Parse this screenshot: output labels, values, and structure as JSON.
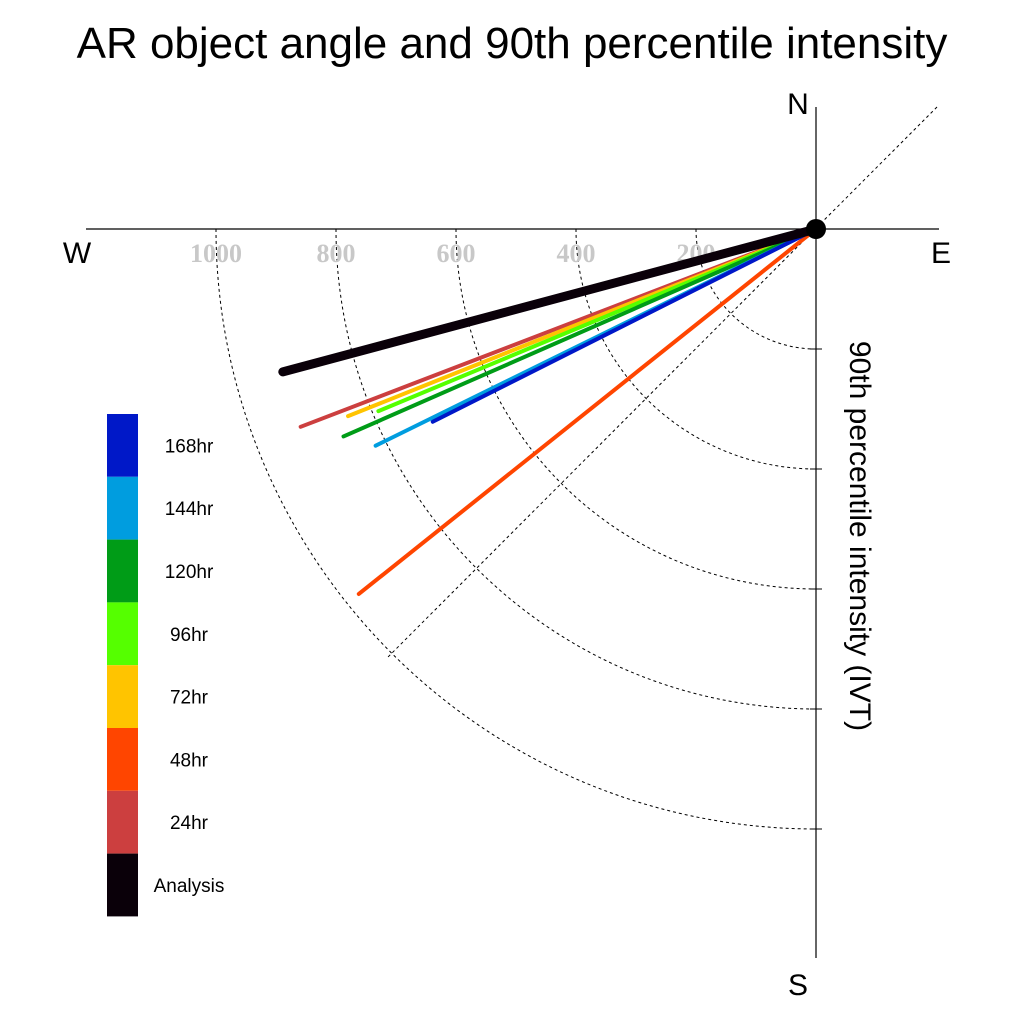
{
  "chart_data": {
    "type": "polar-vector",
    "title": "AR object angle and 90th percentile intensity",
    "radial_label": "90th percentile intensity (IVT)",
    "directions": {
      "north": "N",
      "south": "S",
      "east": "E",
      "west": "W"
    },
    "radial_ticks": [
      200,
      400,
      600,
      1000,
      800
    ],
    "radial_tick_labels": [
      "200",
      "400",
      "600",
      "1000",
      "800"
    ],
    "radial_max": 1200,
    "angle_unit": "degrees below west horizon",
    "series": [
      {
        "name": "24hr",
        "color": "#cc3f3f",
        "angle": 21.0,
        "intensity": 920
      },
      {
        "name": "48hr",
        "color": "#ff4500",
        "angle": 38.6,
        "intensity": 975
      },
      {
        "name": "72hr",
        "color": "#ffc400",
        "angle": 21.8,
        "intensity": 840
      },
      {
        "name": "96hr",
        "color": "#55ff00",
        "angle": 22.6,
        "intensity": 790
      },
      {
        "name": "120hr",
        "color": "#009c17",
        "angle": 23.7,
        "intensity": 860
      },
      {
        "name": "144hr",
        "color": "#009ddf",
        "angle": 26.2,
        "intensity": 818
      },
      {
        "name": "168hr",
        "color": "#0018c8",
        "angle": 26.7,
        "intensity": 715
      },
      {
        "name": "Analysis",
        "color": "#0a0009",
        "angle": 15.0,
        "intensity": 920
      }
    ],
    "legend": {
      "position": "lower-left",
      "items": [
        {
          "label": "168hr",
          "color": "#0018c8"
        },
        {
          "label": "144hr",
          "color": "#009ddf"
        },
        {
          "label": "120hr",
          "color": "#009c17"
        },
        {
          "label": "96hr",
          "color": "#55ff00"
        },
        {
          "label": "72hr",
          "color": "#ffc400"
        },
        {
          "label": "48hr",
          "color": "#ff4500"
        },
        {
          "label": "24hr",
          "color": "#cc3f3f"
        },
        {
          "label": "Analysis",
          "color": "#0a0009"
        }
      ]
    },
    "grid": true
  }
}
